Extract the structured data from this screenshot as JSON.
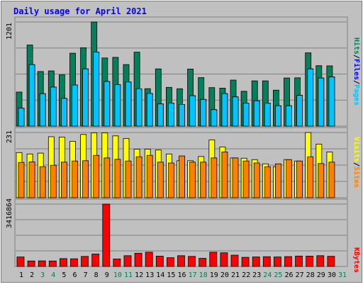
{
  "chart_data": [
    {
      "type": "bar",
      "title": "Daily usage for April 2021",
      "x": [
        "1",
        "2",
        "3",
        "4",
        "5",
        "6",
        "7",
        "8",
        "9",
        "10",
        "11",
        "12",
        "13",
        "14",
        "15",
        "16",
        "17",
        "18",
        "19",
        "20",
        "21",
        "22",
        "23",
        "24",
        "25",
        "26",
        "27",
        "28",
        "29",
        "30",
        "31"
      ],
      "weekend_days": [
        "3",
        "4",
        "10",
        "11",
        "17",
        "18",
        "24",
        "25",
        "31"
      ],
      "ymax_label": "1201",
      "ymax": 1201,
      "series": [
        {
          "name": "Hits",
          "color": "#00805C",
          "values": [
            393,
            935,
            630,
            637,
            591,
            841,
            904,
            1201,
            786,
            793,
            710,
            853,
            432,
            660,
            447,
            431,
            658,
            559,
            444,
            438,
            531,
            402,
            522,
            522,
            415,
            555,
            557,
            845,
            697,
            695,
            0
          ]
        },
        {
          "name": "Files",
          "color": "#0000FF",
          "values": [
            209,
            709,
            374,
            450,
            320,
            474,
            660,
            853,
            515,
            479,
            509,
            430,
            377,
            256,
            264,
            250,
            351,
            308,
            190,
            375,
            337,
            264,
            292,
            264,
            235,
            235,
            355,
            660,
            555,
            567,
            0
          ]
        },
        {
          "name": "Pages",
          "color": "#00C4FF",
          "values": [
            209,
            709,
            374,
            450,
            320,
            474,
            660,
            853,
            515,
            479,
            509,
            430,
            377,
            256,
            264,
            250,
            351,
            308,
            190,
            375,
            337,
            264,
            292,
            264,
            235,
            235,
            355,
            660,
            555,
            567,
            0
          ]
        }
      ],
      "legend": [
        "Pages",
        "/",
        "Files",
        "/",
        "Hits"
      ]
    },
    {
      "type": "bar",
      "x": [
        "1",
        "2",
        "3",
        "4",
        "5",
        "6",
        "7",
        "8",
        "9",
        "10",
        "11",
        "12",
        "13",
        "14",
        "15",
        "16",
        "17",
        "18",
        "19",
        "20",
        "21",
        "22",
        "23",
        "24",
        "25",
        "26",
        "27",
        "28",
        "29",
        "30",
        "31"
      ],
      "ymax_label": "231",
      "ymax": 231,
      "series": [
        {
          "name": "Visits",
          "color": "#FFFF00",
          "values": [
            160,
            155,
            158,
            216,
            215,
            200,
            224,
            230,
            230,
            219,
            210,
            172,
            172,
            169,
            155,
            131,
            131,
            146,
            205,
            180,
            141,
            140,
            135,
            120,
            110,
            135,
            130,
            231,
            190,
            162,
            0
          ]
        },
        {
          "name": "Sites",
          "color": "#FF8000",
          "values": [
            125,
            127,
            110,
            115,
            126,
            130,
            131,
            150,
            141,
            136,
            130,
            145,
            150,
            126,
            123,
            148,
            126,
            126,
            141,
            162,
            141,
            130,
            123,
            110,
            120,
            135,
            130,
            145,
            121,
            126,
            0
          ]
        }
      ],
      "legend": [
        "Sites",
        "/",
        "Visits"
      ]
    },
    {
      "type": "bar",
      "x": [
        "1",
        "2",
        "3",
        "4",
        "5",
        "6",
        "7",
        "8",
        "9",
        "10",
        "11",
        "12",
        "13",
        "14",
        "15",
        "16",
        "17",
        "18",
        "19",
        "20",
        "21",
        "22",
        "23",
        "24",
        "25",
        "26",
        "27",
        "28",
        "29",
        "30",
        "31"
      ],
      "ymax_label": "3416864",
      "ymax": 3416864,
      "series": [
        {
          "name": "KBytes",
          "color": "#FF0000",
          "values": [
            520000,
            300000,
            305000,
            300000,
            430000,
            420000,
            550000,
            680000,
            3416864,
            410000,
            590000,
            725000,
            780000,
            565000,
            480000,
            590000,
            550000,
            445000,
            780000,
            750000,
            620000,
            500000,
            520000,
            535000,
            520000,
            540000,
            570000,
            565000,
            590000,
            555000,
            0
          ]
        }
      ],
      "legend": [
        "KBytes"
      ]
    }
  ]
}
